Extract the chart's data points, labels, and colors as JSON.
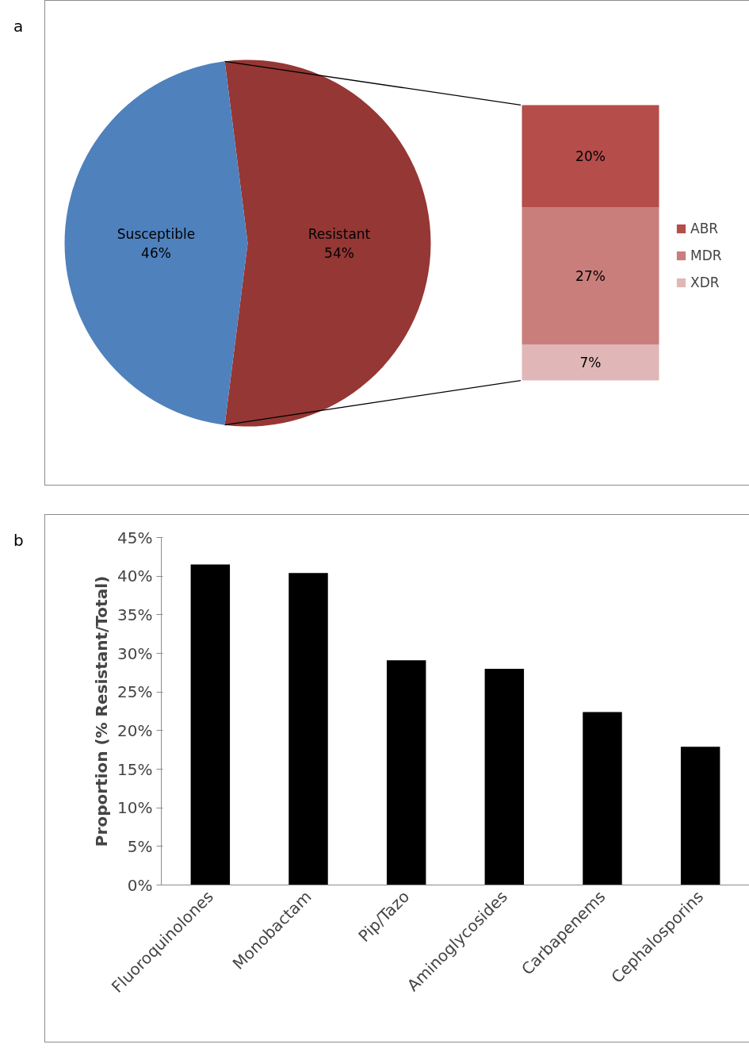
{
  "chart_data": [
    {
      "type": "pie",
      "categories": [
        "Susceptible",
        "Resistant"
      ],
      "values": [
        46,
        54
      ],
      "colors": [
        "#4f81bd",
        "#953735"
      ],
      "value_labels": [
        "46%",
        "54%"
      ],
      "annotations": [
        "a"
      ]
    },
    {
      "type": "bar",
      "stacked": true,
      "categories": [
        null
      ],
      "legend": "right",
      "series": [
        {
          "name": "XDR",
          "color": "#e0b7b6",
          "values": [
            7
          ],
          "value_labels": [
            "7%"
          ]
        },
        {
          "name": "MDR",
          "color": "#c97e7c",
          "values": [
            27
          ],
          "value_labels": [
            "27%"
          ]
        },
        {
          "name": "ABR",
          "color": "#b54d4a",
          "values": [
            20
          ],
          "value_labels": [
            "20%"
          ]
        }
      ]
    },
    {
      "type": "bar",
      "categories": [
        "Fluoroquinolones",
        "Monobactam",
        "Pip/Tazo",
        "Aminoglycosides",
        "Carbapenems",
        "Cephalosporins"
      ],
      "values": [
        41.5,
        40.4,
        29.1,
        28.0,
        22.4,
        17.9
      ],
      "color": "#000000",
      "ylabel": "Proportion (% Resistant/Total)",
      "ylim": [
        0,
        45
      ],
      "yticks": [
        {
          "value": 0,
          "label": "0%"
        },
        {
          "value": 5,
          "label": "5%"
        },
        {
          "value": 10,
          "label": "10%"
        },
        {
          "value": 15,
          "label": "15%"
        },
        {
          "value": 20,
          "label": "20%"
        },
        {
          "value": 25,
          "label": "25%"
        },
        {
          "value": 30,
          "label": "30%"
        },
        {
          "value": 35,
          "label": "35%"
        },
        {
          "value": 40,
          "label": "40%"
        },
        {
          "value": 45,
          "label": "45%"
        }
      ],
      "grid": false,
      "annotations": [
        "b"
      ]
    }
  ]
}
